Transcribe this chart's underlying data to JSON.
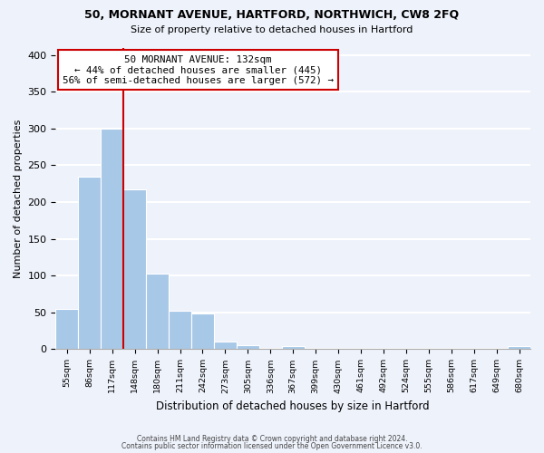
{
  "title": "50, MORNANT AVENUE, HARTFORD, NORTHWICH, CW8 2FQ",
  "subtitle": "Size of property relative to detached houses in Hartford",
  "xlabel": "Distribution of detached houses by size in Hartford",
  "ylabel": "Number of detached properties",
  "bar_color": "#a8c8e8",
  "bin_labels": [
    "55sqm",
    "86sqm",
    "117sqm",
    "148sqm",
    "180sqm",
    "211sqm",
    "242sqm",
    "273sqm",
    "305sqm",
    "336sqm",
    "367sqm",
    "399sqm",
    "430sqm",
    "461sqm",
    "492sqm",
    "524sqm",
    "555sqm",
    "586sqm",
    "617sqm",
    "649sqm",
    "680sqm"
  ],
  "bar_heights": [
    55,
    235,
    300,
    217,
    103,
    52,
    49,
    10,
    6,
    0,
    4,
    0,
    0,
    0,
    0,
    0,
    0,
    0,
    0,
    0,
    4
  ],
  "ylim": [
    0,
    410
  ],
  "yticks": [
    0,
    50,
    100,
    150,
    200,
    250,
    300,
    350,
    400
  ],
  "property_value": 132,
  "bin_edges_values": [
    55,
    86,
    117,
    148,
    180,
    211,
    242,
    273,
    305,
    336,
    367,
    399,
    430,
    461,
    492,
    524,
    555,
    586,
    617,
    649,
    680
  ],
  "annotation_title": "50 MORNANT AVENUE: 132sqm",
  "annotation_line1": "← 44% of detached houses are smaller (445)",
  "annotation_line2": "56% of semi-detached houses are larger (572) →",
  "vline_color": "#cc0000",
  "annotation_box_color": "#ffffff",
  "annotation_box_edge_color": "#cc0000",
  "background_color": "#eef2fb",
  "grid_color": "#ffffff",
  "footer1": "Contains HM Land Registry data © Crown copyright and database right 2024.",
  "footer2": "Contains public sector information licensed under the Open Government Licence v3.0."
}
